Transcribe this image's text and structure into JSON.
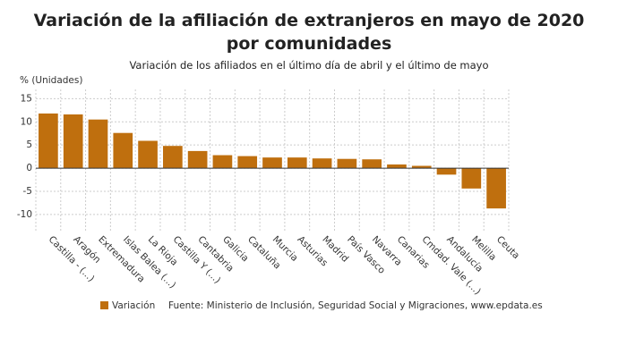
{
  "chart_data": {
    "type": "bar",
    "title": "Variación de la afiliación de extranjeros en mayo de 2020 por comunidades",
    "subtitle": "Variación de los afiliados en el último día de abril y el último de mayo",
    "y_label": "% (Unidades)",
    "source": "Fuente: Ministerio de Inclusión, Seguridad Social y Migraciones, www.epdata.es",
    "categories": [
      "Castilla - (...)",
      "Aragón",
      "Extremadura",
      "Islas Balea (...)",
      "La Rioja",
      "Castilla Y (...)",
      "Cantabria",
      "Galicia",
      "Cataluña",
      "Murcia",
      "Asturias",
      "Madrid",
      "País Vasco",
      "Navarra",
      "Canarias",
      "Cmdad. Vale (...)",
      "Andalucía",
      "Melilla",
      "Ceuta"
    ],
    "series": [
      {
        "name": "Variación",
        "color": "#bf6f0e",
        "values": [
          11.8,
          11.6,
          10.5,
          7.6,
          5.9,
          4.8,
          3.7,
          2.8,
          2.6,
          2.3,
          2.3,
          2.1,
          2.0,
          1.9,
          0.8,
          0.5,
          -1.4,
          -4.4,
          -8.7
        ]
      }
    ],
    "ylim": [
      -13.5,
      17
    ],
    "yticks": [
      -10,
      -5,
      0,
      5,
      10,
      15
    ],
    "grid": true
  }
}
